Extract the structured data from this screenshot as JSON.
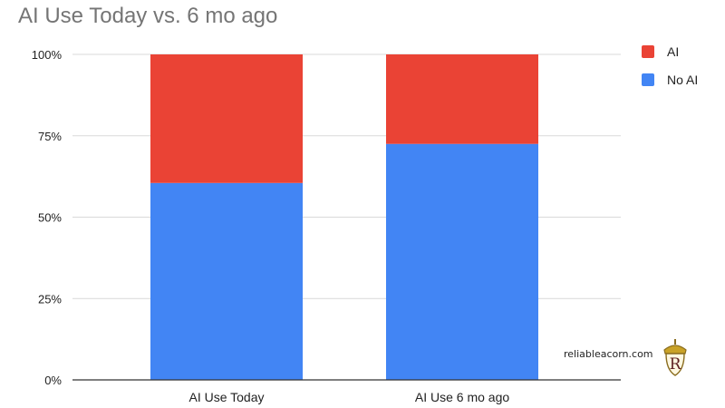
{
  "chart_data": {
    "type": "bar",
    "stacked": true,
    "title": "AI Use Today vs. 6 mo ago",
    "categories": [
      "AI Use Today",
      "AI Use 6 mo ago"
    ],
    "series": [
      {
        "name": "No AI",
        "values": [
          60.5,
          72.5
        ],
        "color": "#4285f4"
      },
      {
        "name": "AI",
        "values": [
          39.5,
          27.5
        ],
        "color": "#ea4335"
      }
    ],
    "legend_order": [
      "AI",
      "No AI"
    ],
    "yticks": [
      "0%",
      "25%",
      "50%",
      "75%",
      "100%"
    ],
    "ylim": [
      0,
      100
    ],
    "xlabel": "",
    "ylabel": "",
    "grid": true,
    "legend_position": "right"
  },
  "watermark": {
    "text": "reliableacorn.com",
    "logo_letter": "R"
  },
  "colors": {
    "grid": "#d9d9d9",
    "axis": "#333333",
    "tick_text": "#222222"
  }
}
